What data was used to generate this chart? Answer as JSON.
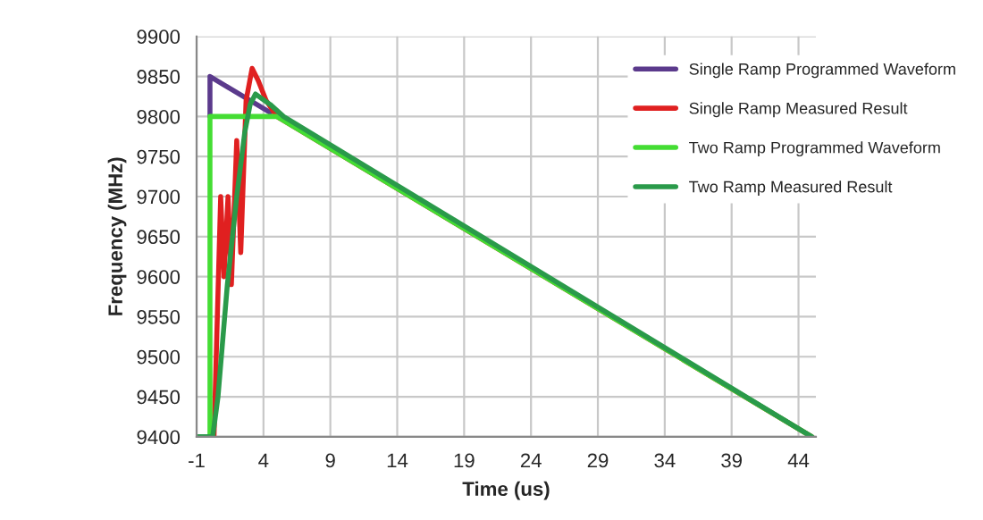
{
  "chart_data": {
    "type": "line",
    "xlabel": "Time (us)",
    "ylabel": "Frequency (MHz)",
    "xlim": [
      -1,
      45.3
    ],
    "ylim": [
      9400,
      9900
    ],
    "xticks": [
      -1,
      4,
      9,
      14,
      19,
      24,
      29,
      34,
      39,
      44
    ],
    "yticks": [
      9400,
      9450,
      9500,
      9550,
      9600,
      9650,
      9700,
      9750,
      9800,
      9850,
      9900
    ],
    "grid": true,
    "legend": "top right",
    "marker": "none",
    "line_style": "solid",
    "series": [
      {
        "name": "Single Ramp Programmed Waveform",
        "color": "#5b3a8c",
        "x": [
          0,
          0,
          4.5
        ],
        "values": [
          9800,
          9850,
          9805
        ]
      },
      {
        "name": "Single Ramp Measured Result",
        "color": "#e02020",
        "x": [
          0.3,
          0.8,
          1.05,
          1.35,
          1.6,
          2.0,
          2.3,
          2.7,
          3.15,
          3.6,
          4.2,
          5.0,
          45
        ],
        "values": [
          9400,
          9700,
          9600,
          9700,
          9590,
          9770,
          9630,
          9820,
          9860,
          9845,
          9820,
          9800,
          9400
        ]
      },
      {
        "name": "Two Ramp Programmed Waveform",
        "color": "#44dd33",
        "x": [
          -1,
          0,
          0,
          5,
          45
        ],
        "values": [
          9400,
          9400,
          9800,
          9800,
          9400
        ]
      },
      {
        "name": "Two Ramp Measured Result",
        "color": "#2a9a4a",
        "x": [
          -1,
          0.2,
          0.6,
          1.3,
          2.0,
          2.6,
          3.0,
          3.4,
          4.5,
          5.5,
          45
        ],
        "values": [
          9400,
          9400,
          9450,
          9590,
          9700,
          9780,
          9815,
          9828,
          9815,
          9800,
          9400
        ]
      }
    ]
  }
}
